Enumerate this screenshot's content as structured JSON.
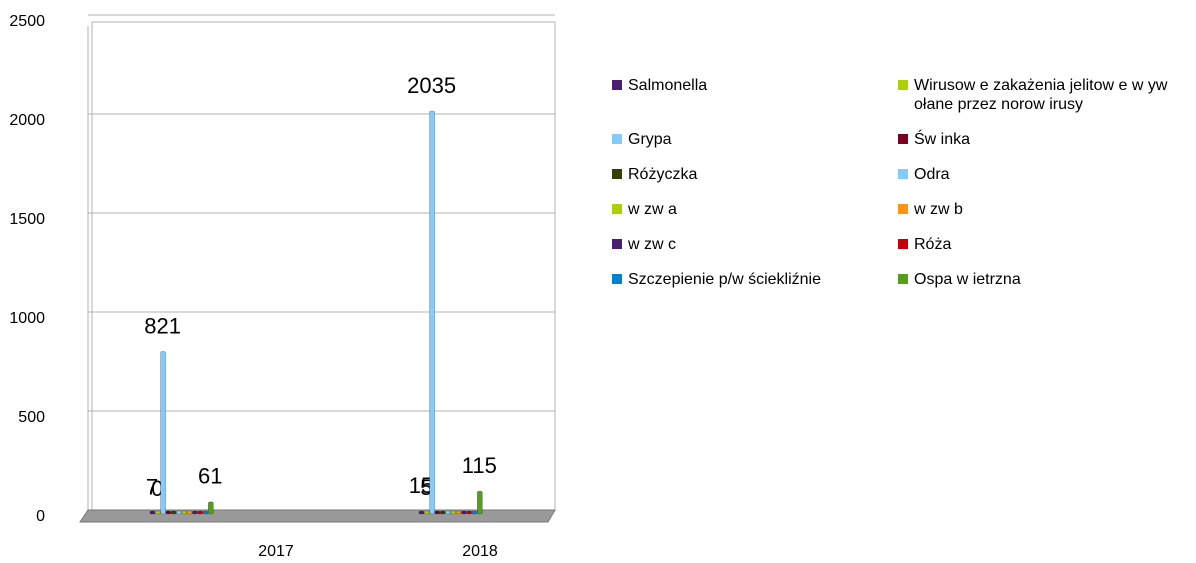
{
  "chart_data": {
    "type": "bar",
    "categories": [
      "2017",
      "2018"
    ],
    "series": [
      {
        "name": "Salmonella",
        "color": "#4b1f6f",
        "values": [
          7,
          15
        ],
        "value_labels": [
          "7",
          "15"
        ]
      },
      {
        "name": "Wirusow e zakażenia jelitow e w yw ołane przez norow irusy",
        "color": "#aecf00",
        "values": [
          0,
          5
        ],
        "value_labels": [
          "0",
          "5"
        ]
      },
      {
        "name": "Grypa",
        "color": "#83caff",
        "values": [
          821,
          2035
        ],
        "value_labels": [
          "821",
          "2035"
        ]
      },
      {
        "name": "Św inka",
        "color": "#7e0021",
        "values": [
          0,
          0
        ],
        "value_labels": [
          null,
          null
        ]
      },
      {
        "name": "Różyczka",
        "color": "#314004",
        "values": [
          0,
          0
        ],
        "value_labels": [
          null,
          null
        ]
      },
      {
        "name": "Odra",
        "color": "#83caff",
        "values": [
          0,
          0
        ],
        "value_labels": [
          null,
          null
        ]
      },
      {
        "name": "w zw a",
        "color": "#aecf00",
        "values": [
          0,
          0
        ],
        "value_labels": [
          null,
          null
        ]
      },
      {
        "name": "w zw b",
        "color": "#ff950e",
        "values": [
          1,
          2
        ],
        "value_labels": [
          null,
          null
        ]
      },
      {
        "name": "w zw c",
        "color": "#4b1f6f",
        "values": [
          1,
          3
        ],
        "value_labels": [
          null,
          null
        ]
      },
      {
        "name": "Róża",
        "color": "#c5000b",
        "values": [
          3,
          4
        ],
        "value_labels": [
          null,
          null
        ]
      },
      {
        "name": "Szczepienie p/w ściekliźnie",
        "color": "#0084d1",
        "values": [
          0,
          1
        ],
        "value_labels": [
          null,
          null
        ]
      },
      {
        "name": "Ospa w ietrzna",
        "color": "#579d1c",
        "values": [
          61,
          115
        ],
        "value_labels": [
          "61",
          "115"
        ]
      }
    ],
    "ylim": [
      0,
      2500
    ],
    "yticks": [
      0,
      500,
      1000,
      1500,
      2000,
      2500
    ],
    "grid": true,
    "legend": "right"
  }
}
